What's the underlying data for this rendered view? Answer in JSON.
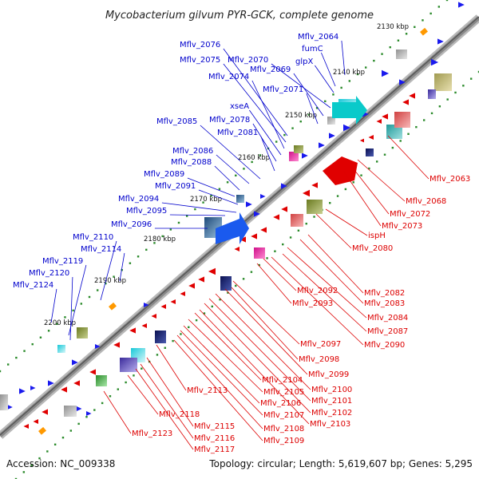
{
  "title": "Mycobacterium gilvum PYR-GCK, complete genome",
  "footer": {
    "accession": "Accession: NC_009338",
    "topology": "Topology: circular; Length: 5,619,607 bp; Genes: 5,295"
  },
  "colors": {
    "plus_label": "#0000cc",
    "minus_label": "#dd0000",
    "tick_dot": "#2a8a2a",
    "backbone": "#888888"
  },
  "kbp_ticks": [
    "2130 kbp",
    "2140 kbp",
    "2150 kbp",
    "2160 kbp",
    "2170 kbp",
    "2180 kbp",
    "2190 kbp",
    "2200 kbp"
  ],
  "plus_labels": [
    "Mflv_2064",
    "fumC",
    "glpX",
    "Mflv_2070",
    "Mflv_2069",
    "Mflv_2071",
    "Mflv_2076",
    "Mflv_2075",
    "Mflv_2074",
    "xseA",
    "Mflv_2078",
    "Mflv_2081",
    "Mflv_2085",
    "Mflv_2086",
    "Mflv_2088",
    "Mflv_2089",
    "Mflv_2091",
    "Mflv_2094",
    "Mflv_2095",
    "Mflv_2096",
    "Mflv_2110",
    "Mflv_2114",
    "Mflv_2119",
    "Mflv_2120",
    "Mflv_2124"
  ],
  "minus_labels": [
    "Mflv_2063",
    "Mflv_2068",
    "Mflv_2072",
    "Mflv_2073",
    "ispH",
    "Mflv_2080",
    "Mflv_2082",
    "Mflv_2083",
    "Mflv_2084",
    "Mflv_2087",
    "Mflv_2090",
    "Mflv_2092",
    "Mflv_2093",
    "Mflv_2097",
    "Mflv_2098",
    "Mflv_2099",
    "Mflv_2100",
    "Mflv_2101",
    "Mflv_2102",
    "Mflv_2103",
    "Mflv_2104",
    "Mflv_2105",
    "Mflv_2106",
    "Mflv_2107",
    "Mflv_2108",
    "Mflv_2109",
    "Mflv_2113",
    "Mflv_2115",
    "Mflv_2116",
    "Mflv_2117",
    "Mflv_2118",
    "Mflv_2123"
  ]
}
